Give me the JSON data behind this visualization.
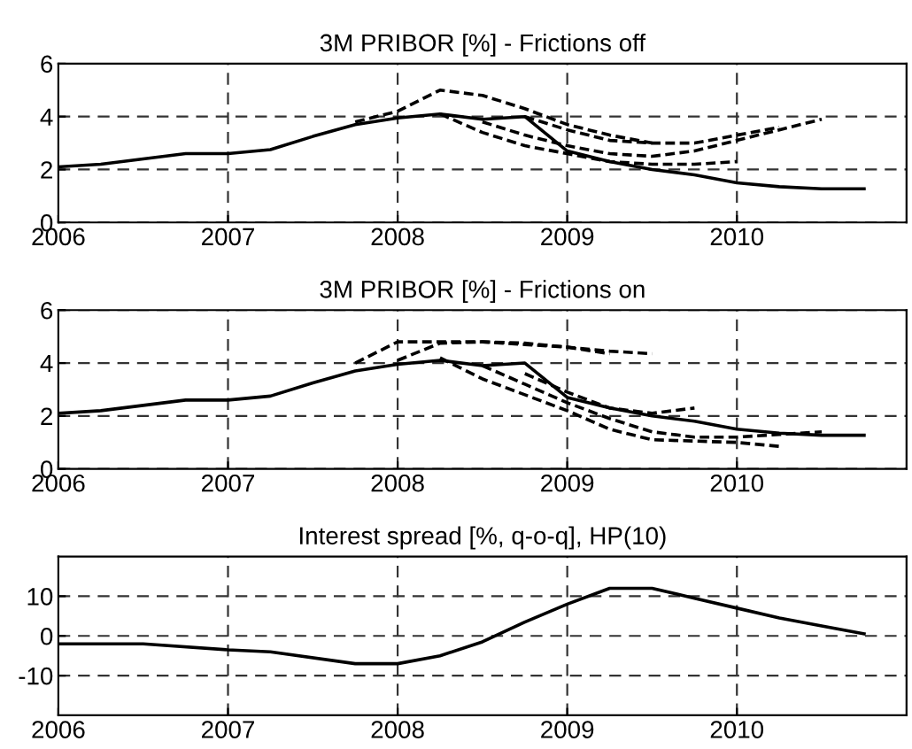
{
  "chart_data": [
    {
      "type": "line",
      "title": "3M PRIBOR [%] - Frictions off",
      "xlim": [
        2006,
        2011
      ],
      "xticks": [
        2006,
        2007,
        2008,
        2009,
        2010
      ],
      "ylim": [
        0,
        6
      ],
      "yticks": [
        0,
        2,
        4,
        6
      ],
      "grid": true,
      "series": [
        {
          "color": "#000000",
          "line_style": "solid",
          "x": [
            2006.0,
            2006.25,
            2006.5,
            2006.75,
            2007.0,
            2007.25,
            2007.5,
            2007.75,
            2008.0,
            2008.25,
            2008.5,
            2008.75,
            2009.0,
            2009.25,
            2009.5,
            2009.75,
            2010.0,
            2010.25,
            2010.5,
            2010.75
          ],
          "values": [
            2.1,
            2.2,
            2.4,
            2.6,
            2.6,
            2.75,
            3.25,
            3.7,
            3.95,
            4.1,
            3.9,
            4.0,
            2.7,
            2.3,
            2.0,
            1.8,
            1.5,
            1.35,
            1.27,
            1.27
          ]
        },
        {
          "color": "#000000",
          "line_style": "dashed",
          "x": [
            2007.75,
            2008.0,
            2008.25,
            2008.5,
            2008.75,
            2009.0,
            2009.25,
            2009.5
          ],
          "values": [
            3.8,
            4.2,
            5.0,
            4.8,
            4.3,
            3.7,
            3.3,
            3.0
          ]
        },
        {
          "color": "#000000",
          "line_style": "dashed",
          "x": [
            2008.25,
            2008.5,
            2008.75,
            2009.0,
            2009.25,
            2009.5,
            2009.75,
            2010.0
          ],
          "values": [
            4.1,
            3.4,
            2.9,
            2.6,
            2.3,
            2.2,
            2.2,
            2.3
          ]
        },
        {
          "color": "#000000",
          "line_style": "dashed",
          "x": [
            2008.5,
            2008.75,
            2009.0,
            2009.25,
            2009.5,
            2009.75,
            2010.0,
            2010.25,
            2010.5
          ],
          "values": [
            3.8,
            3.3,
            2.9,
            2.6,
            2.5,
            2.7,
            3.1,
            3.5,
            3.9
          ]
        },
        {
          "color": "#000000",
          "line_style": "dashed",
          "x": [
            2008.75,
            2009.0,
            2009.25,
            2009.5,
            2009.75,
            2010.0,
            2010.25
          ],
          "values": [
            4.0,
            3.5,
            3.1,
            3.0,
            3.0,
            3.3,
            3.6
          ]
        }
      ]
    },
    {
      "type": "line",
      "title": "3M PRIBOR [%] - Frictions on",
      "xlim": [
        2006,
        2011
      ],
      "xticks": [
        2006,
        2007,
        2008,
        2009,
        2010
      ],
      "ylim": [
        0,
        6
      ],
      "yticks": [
        0,
        2,
        4,
        6
      ],
      "grid": true,
      "series": [
        {
          "color": "#000000",
          "line_style": "solid",
          "x": [
            2006.0,
            2006.25,
            2006.5,
            2006.75,
            2007.0,
            2007.25,
            2007.5,
            2007.75,
            2008.0,
            2008.25,
            2008.5,
            2008.75,
            2009.0,
            2009.25,
            2009.5,
            2009.75,
            2010.0,
            2010.25,
            2010.5,
            2010.75
          ],
          "values": [
            2.1,
            2.2,
            2.4,
            2.6,
            2.6,
            2.75,
            3.25,
            3.7,
            3.95,
            4.1,
            3.9,
            4.0,
            2.7,
            2.3,
            2.0,
            1.8,
            1.5,
            1.35,
            1.27,
            1.27
          ]
        },
        {
          "color": "#000000",
          "line_style": "dashed",
          "x": [
            2007.75,
            2008.0,
            2008.25,
            2008.5,
            2008.75,
            2009.0,
            2009.25,
            2009.5
          ],
          "values": [
            4.0,
            4.8,
            4.8,
            4.8,
            4.7,
            4.6,
            4.45,
            4.35
          ]
        },
        {
          "color": "#000000",
          "line_style": "dashed",
          "x": [
            2008.0,
            2008.25,
            2008.5,
            2008.75,
            2009.0,
            2009.25
          ],
          "values": [
            4.1,
            4.75,
            4.8,
            4.75,
            4.6,
            4.35
          ]
        },
        {
          "color": "#000000",
          "line_style": "dashed",
          "x": [
            2008.25,
            2008.5,
            2008.75,
            2009.0,
            2009.25,
            2009.5,
            2009.75,
            2010.0,
            2010.25
          ],
          "values": [
            4.2,
            3.4,
            2.8,
            2.2,
            1.5,
            1.1,
            1.05,
            1.0,
            0.85
          ]
        },
        {
          "color": "#000000",
          "line_style": "dashed",
          "x": [
            2008.5,
            2008.75,
            2009.0,
            2009.25,
            2009.5,
            2009.75,
            2010.0,
            2010.25,
            2010.5
          ],
          "values": [
            3.9,
            3.2,
            2.5,
            1.9,
            1.4,
            1.2,
            1.2,
            1.3,
            1.4
          ]
        },
        {
          "color": "#000000",
          "line_style": "dashed",
          "x": [
            2008.75,
            2009.0,
            2009.25,
            2009.5,
            2009.75
          ],
          "values": [
            3.6,
            2.9,
            2.3,
            2.1,
            2.3
          ]
        }
      ]
    },
    {
      "type": "line",
      "title": "Interest spread [%, q-o-q], HP(10)",
      "xlim": [
        2006,
        2011
      ],
      "xticks": [
        2006,
        2007,
        2008,
        2009,
        2010
      ],
      "ylim": [
        -20,
        20
      ],
      "yticks": [
        -10,
        0,
        10
      ],
      "grid": true,
      "series": [
        {
          "color": "#000000",
          "line_style": "solid",
          "x": [
            2006.0,
            2006.5,
            2007.0,
            2007.25,
            2007.75,
            2008.0,
            2008.25,
            2008.5,
            2008.75,
            2009.0,
            2009.25,
            2009.5,
            2009.75,
            2010.0,
            2010.25,
            2010.5,
            2010.75
          ],
          "values": [
            -2,
            -2,
            -3.5,
            -4,
            -7,
            -7,
            -5,
            -1.5,
            3.5,
            8,
            12,
            12,
            9.5,
            7,
            4.5,
            2.5,
            0.5
          ]
        }
      ]
    }
  ]
}
